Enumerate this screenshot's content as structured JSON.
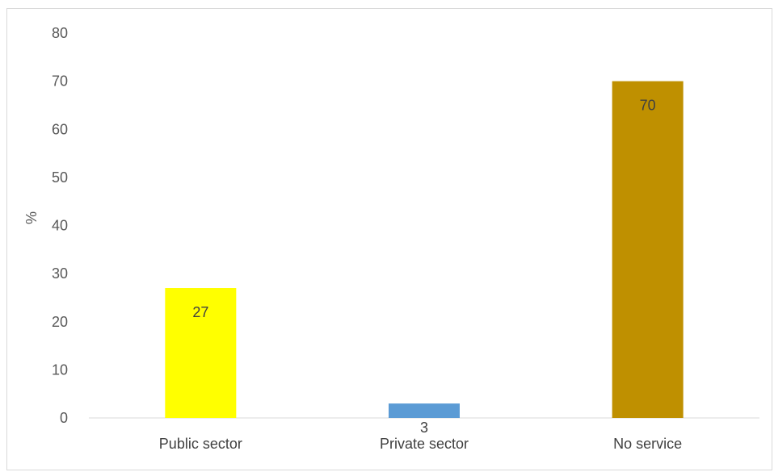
{
  "chart_data": {
    "type": "bar",
    "categories": [
      "Public sector",
      "Private sector",
      "No service"
    ],
    "values": [
      27,
      3,
      70
    ],
    "data_labels": [
      "27",
      "3",
      "70"
    ],
    "colors": [
      "#FFFF00",
      "#5B9BD5",
      "#BF9000"
    ],
    "ylabel": "%",
    "xlabel": "",
    "ylim": [
      0,
      80
    ],
    "yticks": [
      "0",
      "10",
      "20",
      "30",
      "40",
      "50",
      "60",
      "70",
      "80"
    ],
    "grid": false,
    "legend": "none"
  }
}
